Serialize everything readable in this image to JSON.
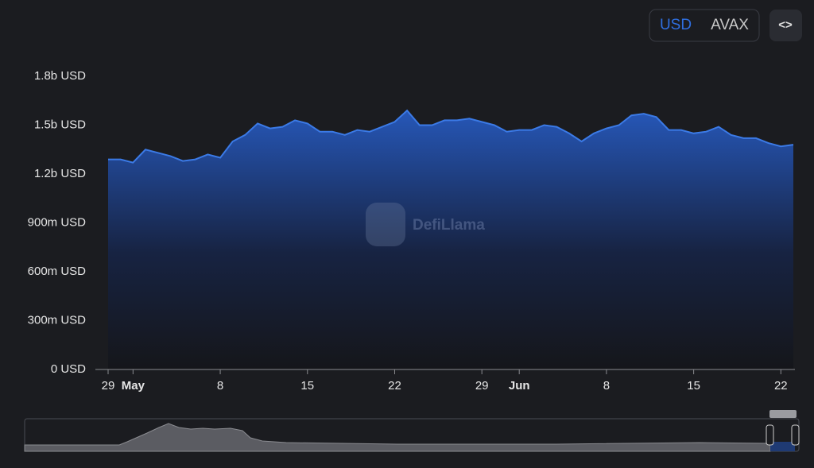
{
  "controls": {
    "currency_options": [
      "USD",
      "AVAX"
    ],
    "selected": "USD",
    "embed_button": "<>"
  },
  "watermark": "DefiLlama",
  "chart_data": {
    "type": "area",
    "x": [
      "04-29",
      "04-30",
      "05-01",
      "05-02",
      "05-03",
      "05-04",
      "05-05",
      "05-06",
      "05-07",
      "05-08",
      "05-09",
      "05-10",
      "05-11",
      "05-12",
      "05-13",
      "05-14",
      "05-15",
      "05-16",
      "05-17",
      "05-18",
      "05-19",
      "05-20",
      "05-21",
      "05-22",
      "05-23",
      "05-24",
      "05-25",
      "05-26",
      "05-27",
      "05-28",
      "05-29",
      "05-30",
      "05-31",
      "06-01",
      "06-02",
      "06-03",
      "06-04",
      "06-05",
      "06-06",
      "06-07",
      "06-08",
      "06-09",
      "06-10",
      "06-11",
      "06-12",
      "06-13",
      "06-14",
      "06-15",
      "06-16",
      "06-17",
      "06-18",
      "06-19",
      "06-20",
      "06-21",
      "06-22",
      "06-23"
    ],
    "values": [
      1290000000,
      1290000000,
      1270000000,
      1350000000,
      1330000000,
      1310000000,
      1280000000,
      1290000000,
      1320000000,
      1300000000,
      1400000000,
      1440000000,
      1510000000,
      1480000000,
      1490000000,
      1530000000,
      1510000000,
      1460000000,
      1460000000,
      1440000000,
      1470000000,
      1460000000,
      1490000000,
      1520000000,
      1590000000,
      1500000000,
      1500000000,
      1530000000,
      1530000000,
      1540000000,
      1520000000,
      1500000000,
      1460000000,
      1470000000,
      1470000000,
      1500000000,
      1490000000,
      1450000000,
      1400000000,
      1450000000,
      1480000000,
      1500000000,
      1560000000,
      1570000000,
      1550000000,
      1470000000,
      1470000000,
      1450000000,
      1460000000,
      1490000000,
      1440000000,
      1420000000,
      1420000000,
      1390000000,
      1370000000,
      1380000000
    ],
    "color": "#3b7ae6",
    "ylim": [
      0,
      1800000000
    ],
    "yticks": [
      {
        "value": 0,
        "label": "0 USD"
      },
      {
        "value": 300000000,
        "label": "300m USD"
      },
      {
        "value": 600000000,
        "label": "600m USD"
      },
      {
        "value": 900000000,
        "label": "900m USD"
      },
      {
        "value": 1200000000,
        "label": "1.2b USD"
      },
      {
        "value": 1500000000,
        "label": "1.5b USD"
      },
      {
        "value": 1800000000,
        "label": "1.8b USD"
      }
    ],
    "xticks": [
      {
        "value": "04-29",
        "label": "29"
      },
      {
        "value": "05-01",
        "label": "May"
      },
      {
        "value": "05-08",
        "label": "8"
      },
      {
        "value": "05-15",
        "label": "15"
      },
      {
        "value": "05-22",
        "label": "22"
      },
      {
        "value": "05-29",
        "label": "29"
      },
      {
        "value": "06-01",
        "label": "Jun"
      },
      {
        "value": "06-08",
        "label": "8"
      },
      {
        "value": "06-15",
        "label": "15"
      },
      {
        "value": "06-22",
        "label": "22"
      }
    ]
  }
}
